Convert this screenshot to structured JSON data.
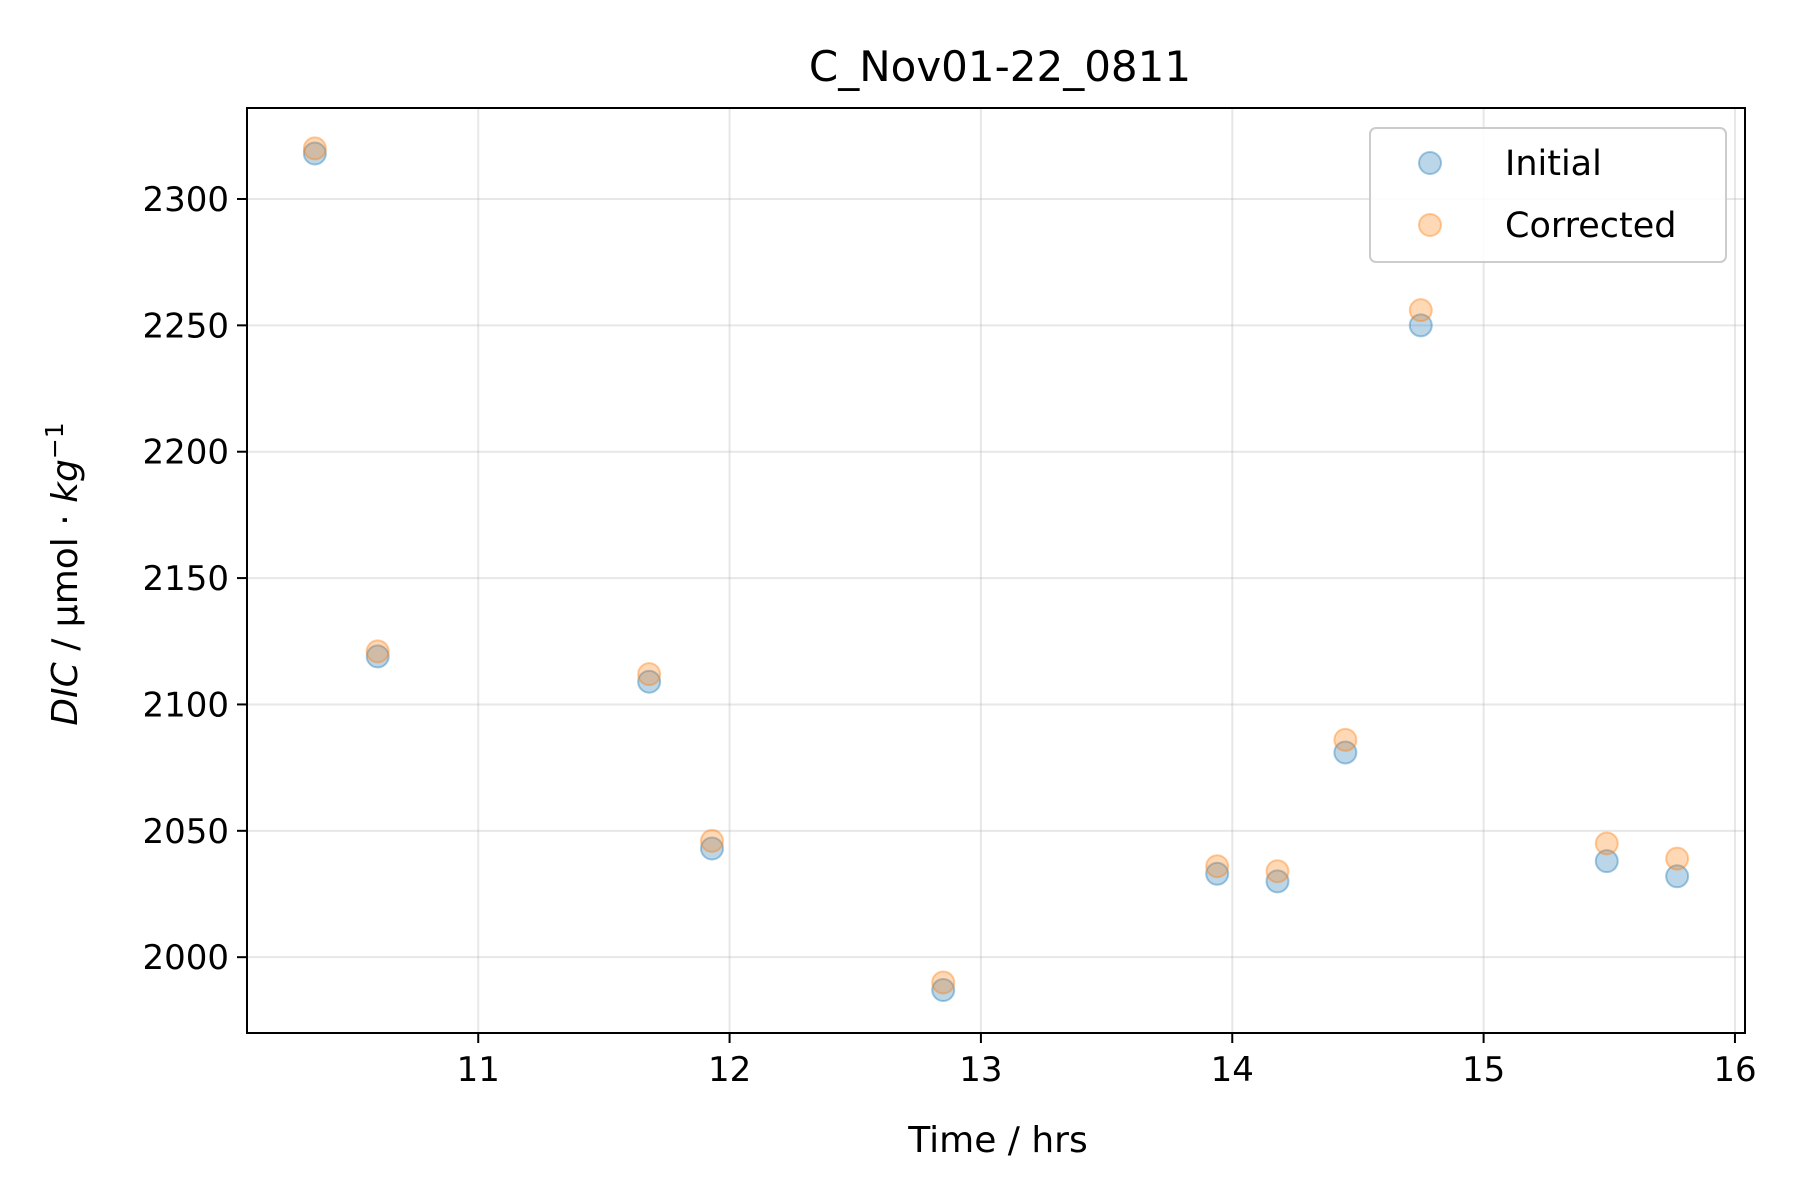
{
  "chart_data": {
    "type": "scatter",
    "title": "C_Nov01-22_0811",
    "xlabel": "Time / hrs",
    "ylabel_parts": {
      "var": "DIC",
      "sep": " / µmol · ",
      "unit": "kg",
      "exp": "−1"
    },
    "xlim": [
      10.08,
      16.04
    ],
    "ylim": [
      1970,
      2336
    ],
    "xticks": [
      11,
      12,
      13,
      14,
      15,
      16
    ],
    "yticks": [
      2000,
      2050,
      2100,
      2150,
      2200,
      2250,
      2300
    ],
    "grid": true,
    "legend_position": "top-right",
    "series": [
      {
        "name": "Initial",
        "color": "#1f77b4",
        "points": [
          [
            10.35,
            2318
          ],
          [
            10.6,
            2119
          ],
          [
            11.68,
            2109
          ],
          [
            11.93,
            2043
          ],
          [
            12.85,
            1987
          ],
          [
            13.94,
            2033
          ],
          [
            14.18,
            2030
          ],
          [
            14.45,
            2081
          ],
          [
            14.75,
            2250
          ],
          [
            15.49,
            2038
          ],
          [
            15.77,
            2032
          ]
        ]
      },
      {
        "name": "Corrected",
        "color": "#ff7f0e",
        "points": [
          [
            10.35,
            2320
          ],
          [
            10.6,
            2121
          ],
          [
            11.68,
            2112
          ],
          [
            11.93,
            2046
          ],
          [
            12.85,
            1990
          ],
          [
            13.94,
            2036
          ],
          [
            14.18,
            2034
          ],
          [
            14.45,
            2086
          ],
          [
            14.75,
            2256
          ],
          [
            15.49,
            2045
          ],
          [
            15.77,
            2039
          ]
        ]
      }
    ]
  }
}
